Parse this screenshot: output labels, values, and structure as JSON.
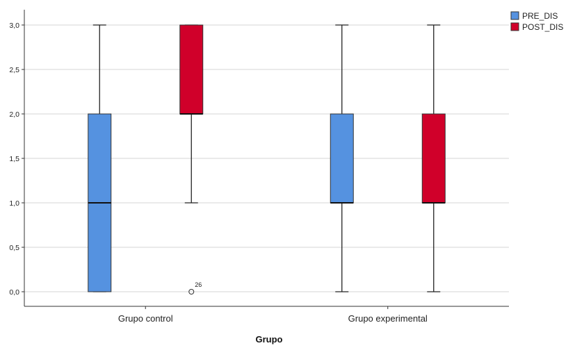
{
  "chart_data": {
    "type": "boxplot",
    "xlabel": "Grupo",
    "ylabel": "",
    "ylim": [
      0,
      3
    ],
    "yticks": [
      "0,0",
      "0,5",
      "1,0",
      "1,5",
      "2,0",
      "2,5",
      "3,0"
    ],
    "categories": [
      "Grupo control",
      "Grupo experimental"
    ],
    "grid": true,
    "legend_position": "top-right",
    "series": [
      {
        "name": "PRE_DIS",
        "color": "#5592E0",
        "boxes": [
          {
            "category": "Grupo control",
            "min": 0,
            "q1": 0,
            "median": 1,
            "q3": 2,
            "max": 3,
            "outliers": []
          },
          {
            "category": "Grupo experimental",
            "min": 0,
            "q1": 1,
            "median": 1,
            "q3": 2,
            "max": 3,
            "outliers": []
          }
        ]
      },
      {
        "name": "POST_DIS",
        "color": "#D0002A",
        "boxes": [
          {
            "category": "Grupo control",
            "min": 1,
            "q1": 2,
            "median": 2,
            "q3": 3,
            "max": 3,
            "outliers": [
              {
                "value": 0,
                "label": "26"
              }
            ]
          },
          {
            "category": "Grupo experimental",
            "min": 0,
            "q1": 1,
            "median": 1,
            "q3": 2,
            "max": 3,
            "outliers": []
          }
        ]
      }
    ]
  }
}
